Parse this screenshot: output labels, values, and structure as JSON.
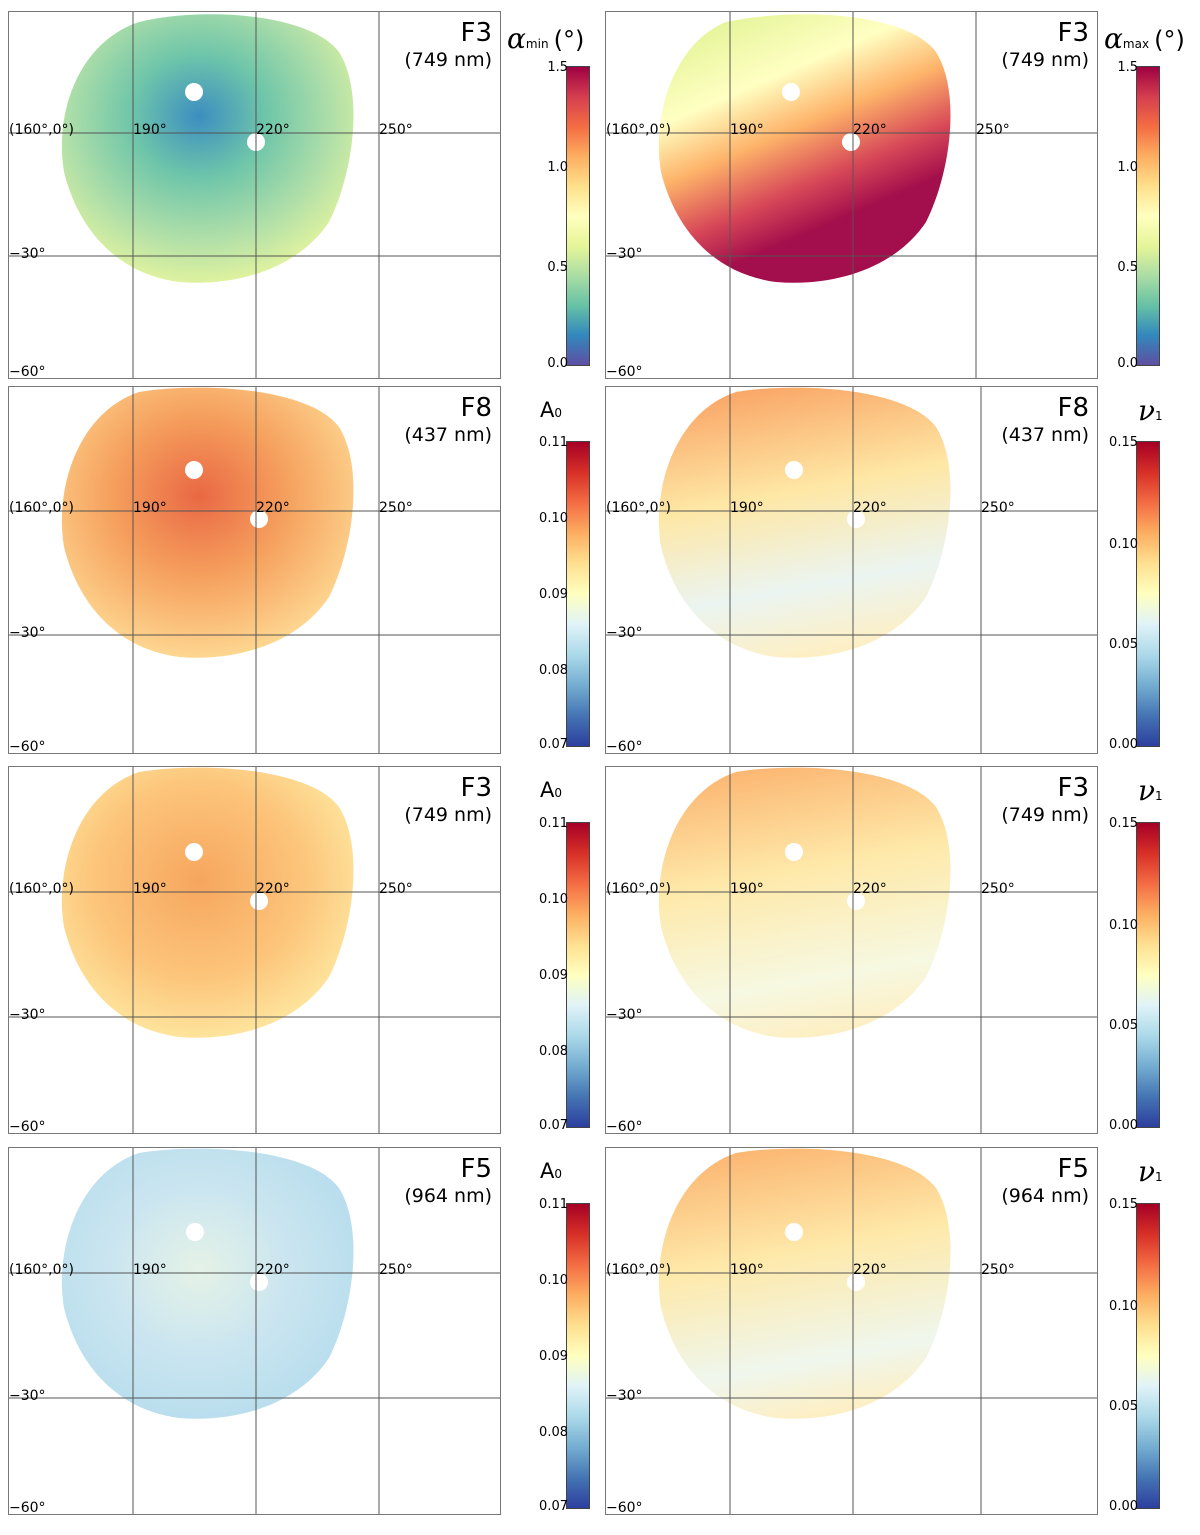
{
  "grid": {
    "origin_label": "(160°,0°)",
    "lon_labels": [
      "190°",
      "220°",
      "250°"
    ],
    "lat_labels": [
      "−30°",
      "−60°"
    ]
  },
  "colors": {
    "spectral": [
      "#5e4fa2",
      "#3288bd",
      "#66c2a5",
      "#abdda4",
      "#e6f598",
      "#ffffbf",
      "#fee08b",
      "#fdae61",
      "#f46d43",
      "#d53e4f",
      "#9e0142"
    ],
    "diverging": [
      "#2c3f9f",
      "#4575b4",
      "#74add1",
      "#abd9e9",
      "#e0f3f8",
      "#ffffbf",
      "#fee090",
      "#fdae61",
      "#f46d43",
      "#d73027",
      "#a50026"
    ]
  },
  "panels": [
    {
      "filter": "F3",
      "wavelength": "(749 nm)",
      "quantity": "α_min (°)",
      "scale": "alpha",
      "range": [
        0.0,
        1.5
      ]
    },
    {
      "filter": "F3",
      "wavelength": "(749 nm)",
      "quantity": "α_max (°)",
      "scale": "alpha",
      "range": [
        0.0,
        1.5
      ]
    },
    {
      "filter": "F8",
      "wavelength": "(437 nm)",
      "quantity": "A0",
      "scale": "albedo",
      "range": [
        0.07,
        0.11
      ]
    },
    {
      "filter": "F8",
      "wavelength": "(437 nm)",
      "quantity": "ν1",
      "scale": "nu",
      "range": [
        0.0,
        0.15
      ]
    },
    {
      "filter": "F3",
      "wavelength": "(749 nm)",
      "quantity": "A0",
      "scale": "albedo",
      "range": [
        0.07,
        0.11
      ]
    },
    {
      "filter": "F3",
      "wavelength": "(749 nm)",
      "quantity": "ν1",
      "scale": "nu",
      "range": [
        0.0,
        0.15
      ]
    },
    {
      "filter": "F5",
      "wavelength": "(964 nm)",
      "quantity": "A0",
      "scale": "albedo",
      "range": [
        0.07,
        0.11
      ]
    },
    {
      "filter": "F5",
      "wavelength": "(964 nm)",
      "quantity": "ν1",
      "scale": "nu",
      "range": [
        0.0,
        0.15
      ]
    }
  ],
  "colorbars": {
    "alpha": {
      "title_symbol": "α",
      "title_sub_min": "min",
      "title_sub_max": "max",
      "title_unit": "(°)",
      "ticks": [
        "1.5",
        "1.0",
        "0.5",
        "0.0"
      ]
    },
    "albedo": {
      "title": "A",
      "title_sub": "0",
      "ticks": [
        "0.11",
        "0.10",
        "0.09",
        "0.08",
        "0.07"
      ]
    },
    "nu": {
      "title": "ν",
      "title_sub": "1",
      "ticks": [
        "0.15",
        "0.10",
        "0.05",
        "0.00"
      ]
    }
  }
}
